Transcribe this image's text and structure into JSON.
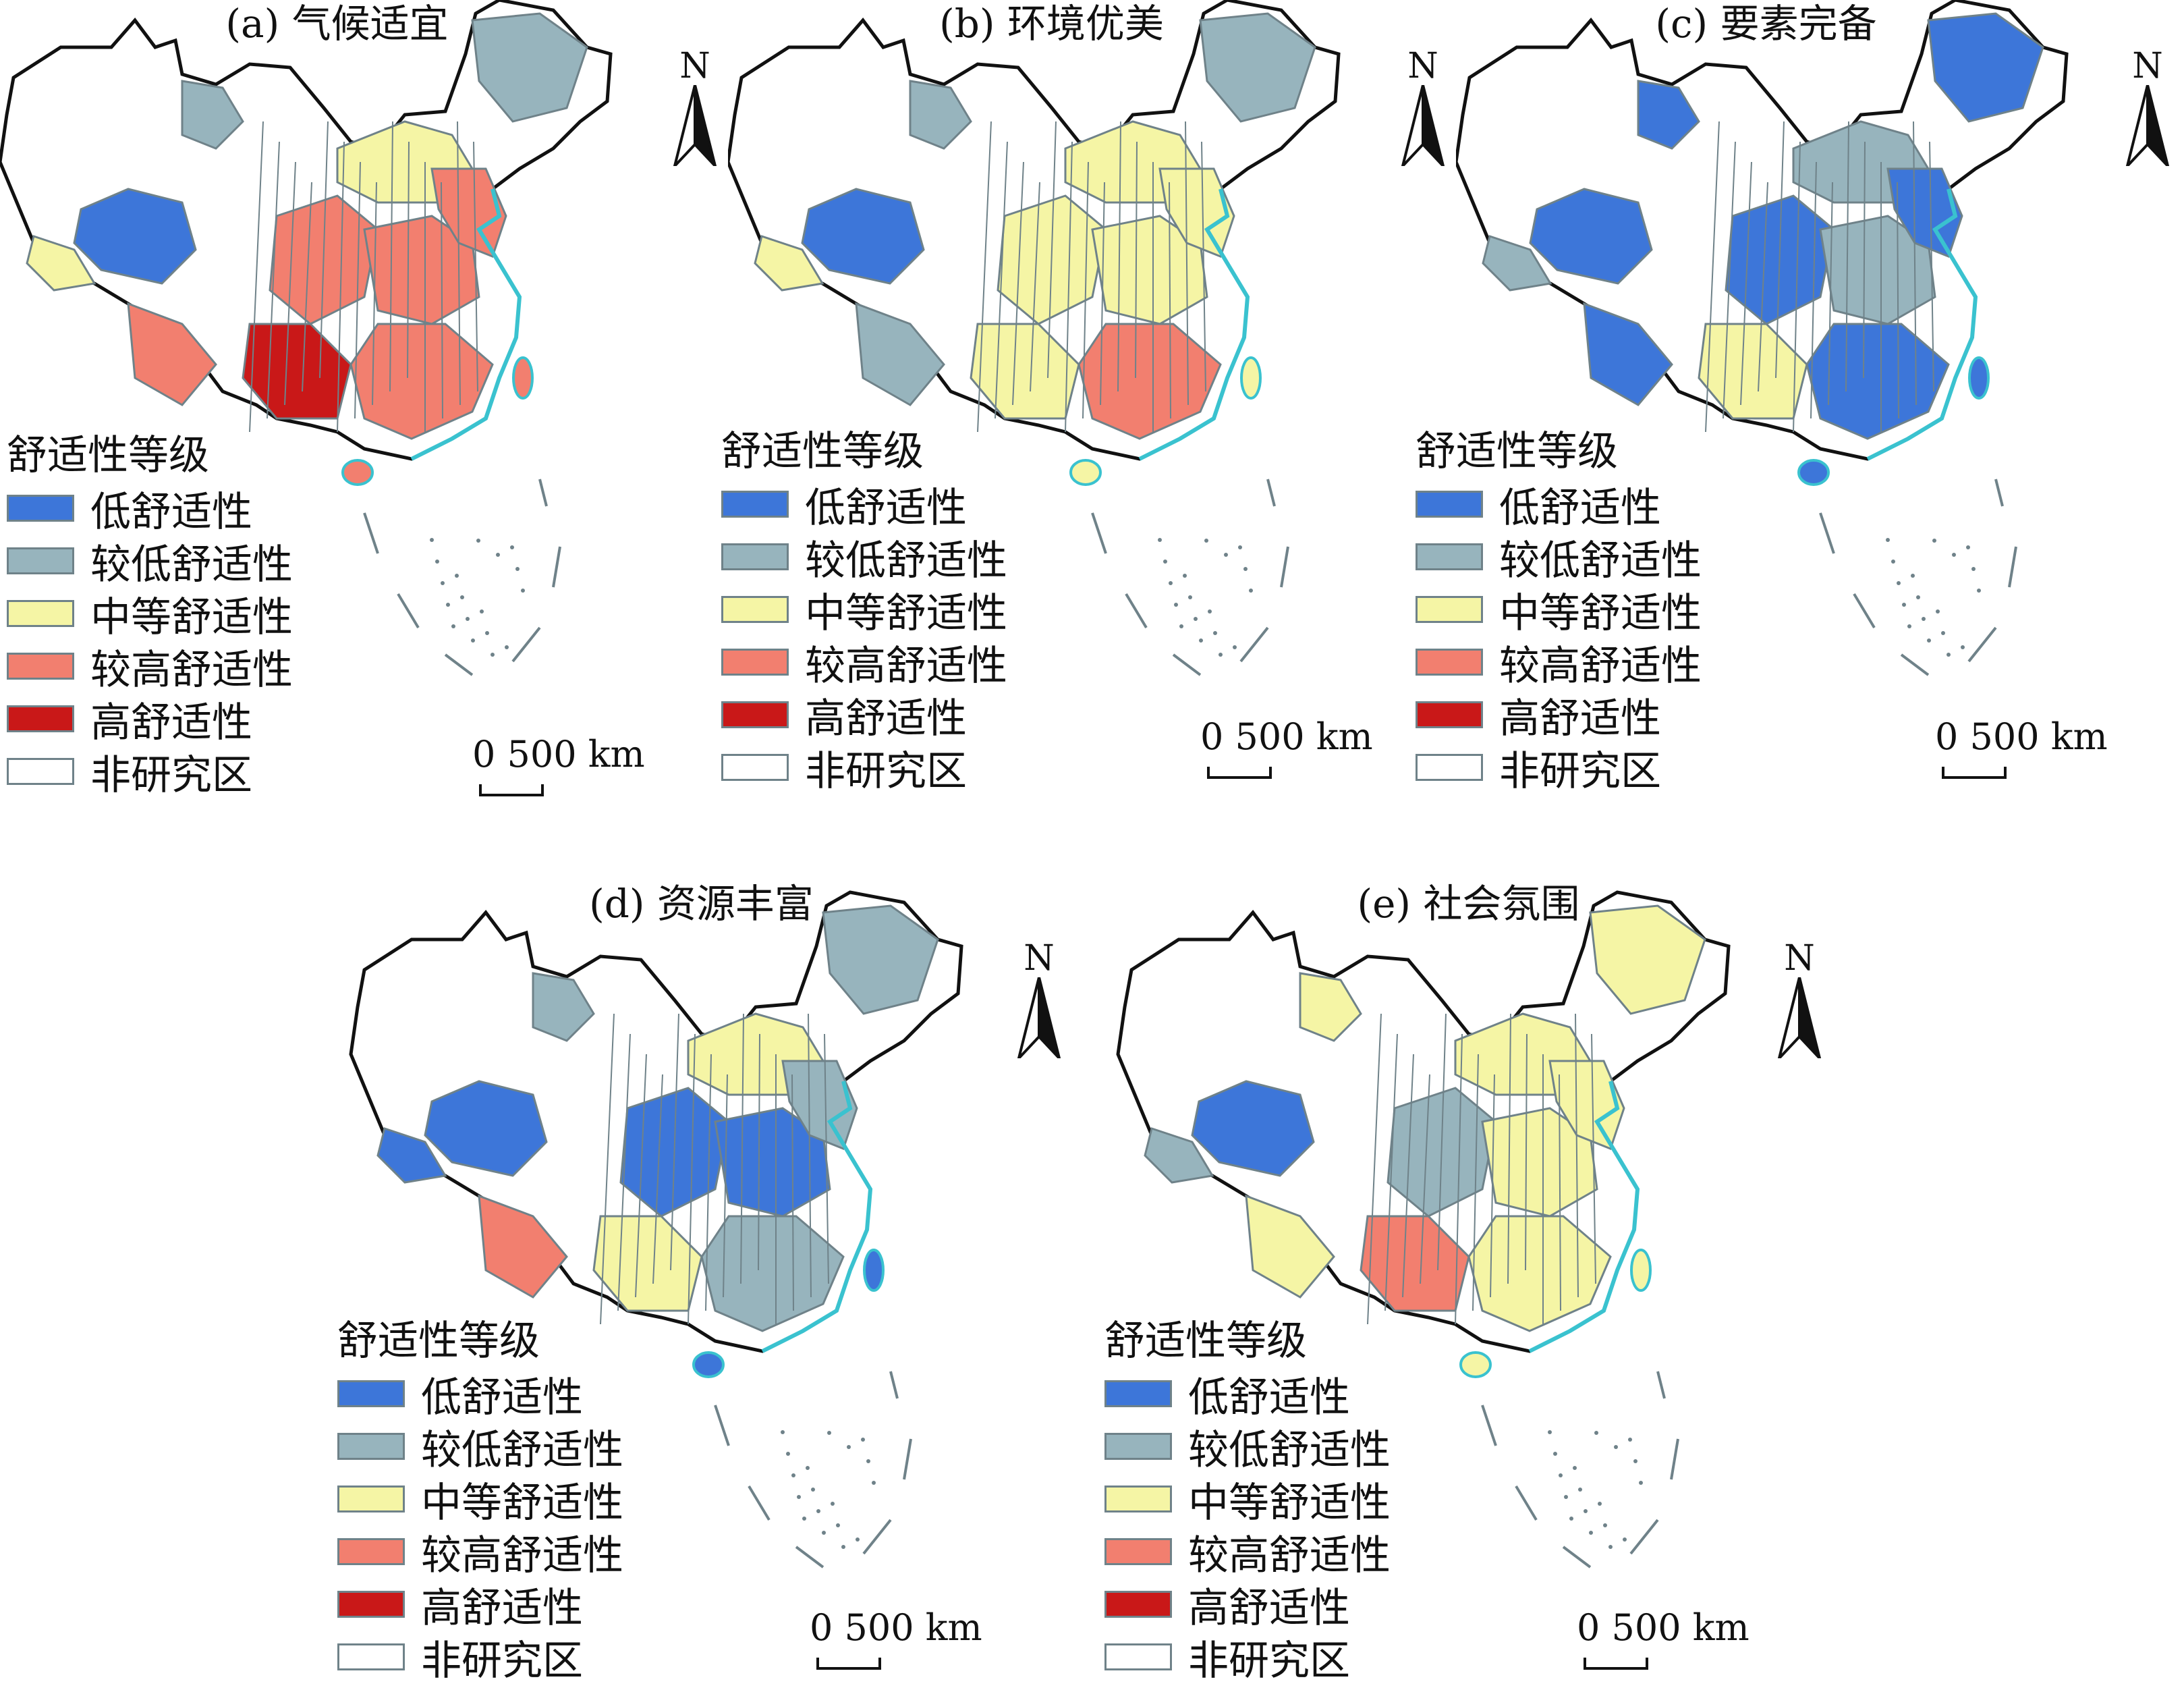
{
  "panels": [
    {
      "label": "(a) 气候适宜"
    },
    {
      "label": "(b) 环境优美"
    },
    {
      "label": "(c) 要素完备"
    },
    {
      "label": "(d) 资源丰富"
    },
    {
      "label": "(e) 社会氛围"
    }
  ],
  "legend": {
    "title": "舒适性等级",
    "items": [
      {
        "label": "低舒适性",
        "color": "#3d76d9"
      },
      {
        "label": "较低舒适性",
        "color": "#97b4bd"
      },
      {
        "label": "中等舒适性",
        "color": "#f5f5a5"
      },
      {
        "label": "较高舒适性",
        "color": "#f27f6f"
      },
      {
        "label": "高舒适性",
        "color": "#c91818"
      },
      {
        "label": "非研究区",
        "color": "#ffffff"
      }
    ]
  },
  "north_arrow": {
    "label": "N"
  },
  "scale_bar": {
    "label": "0  500 km"
  },
  "colors": {
    "boundary": "#6f8289",
    "outline": "#111111",
    "coast": "#3ac2cf"
  }
}
